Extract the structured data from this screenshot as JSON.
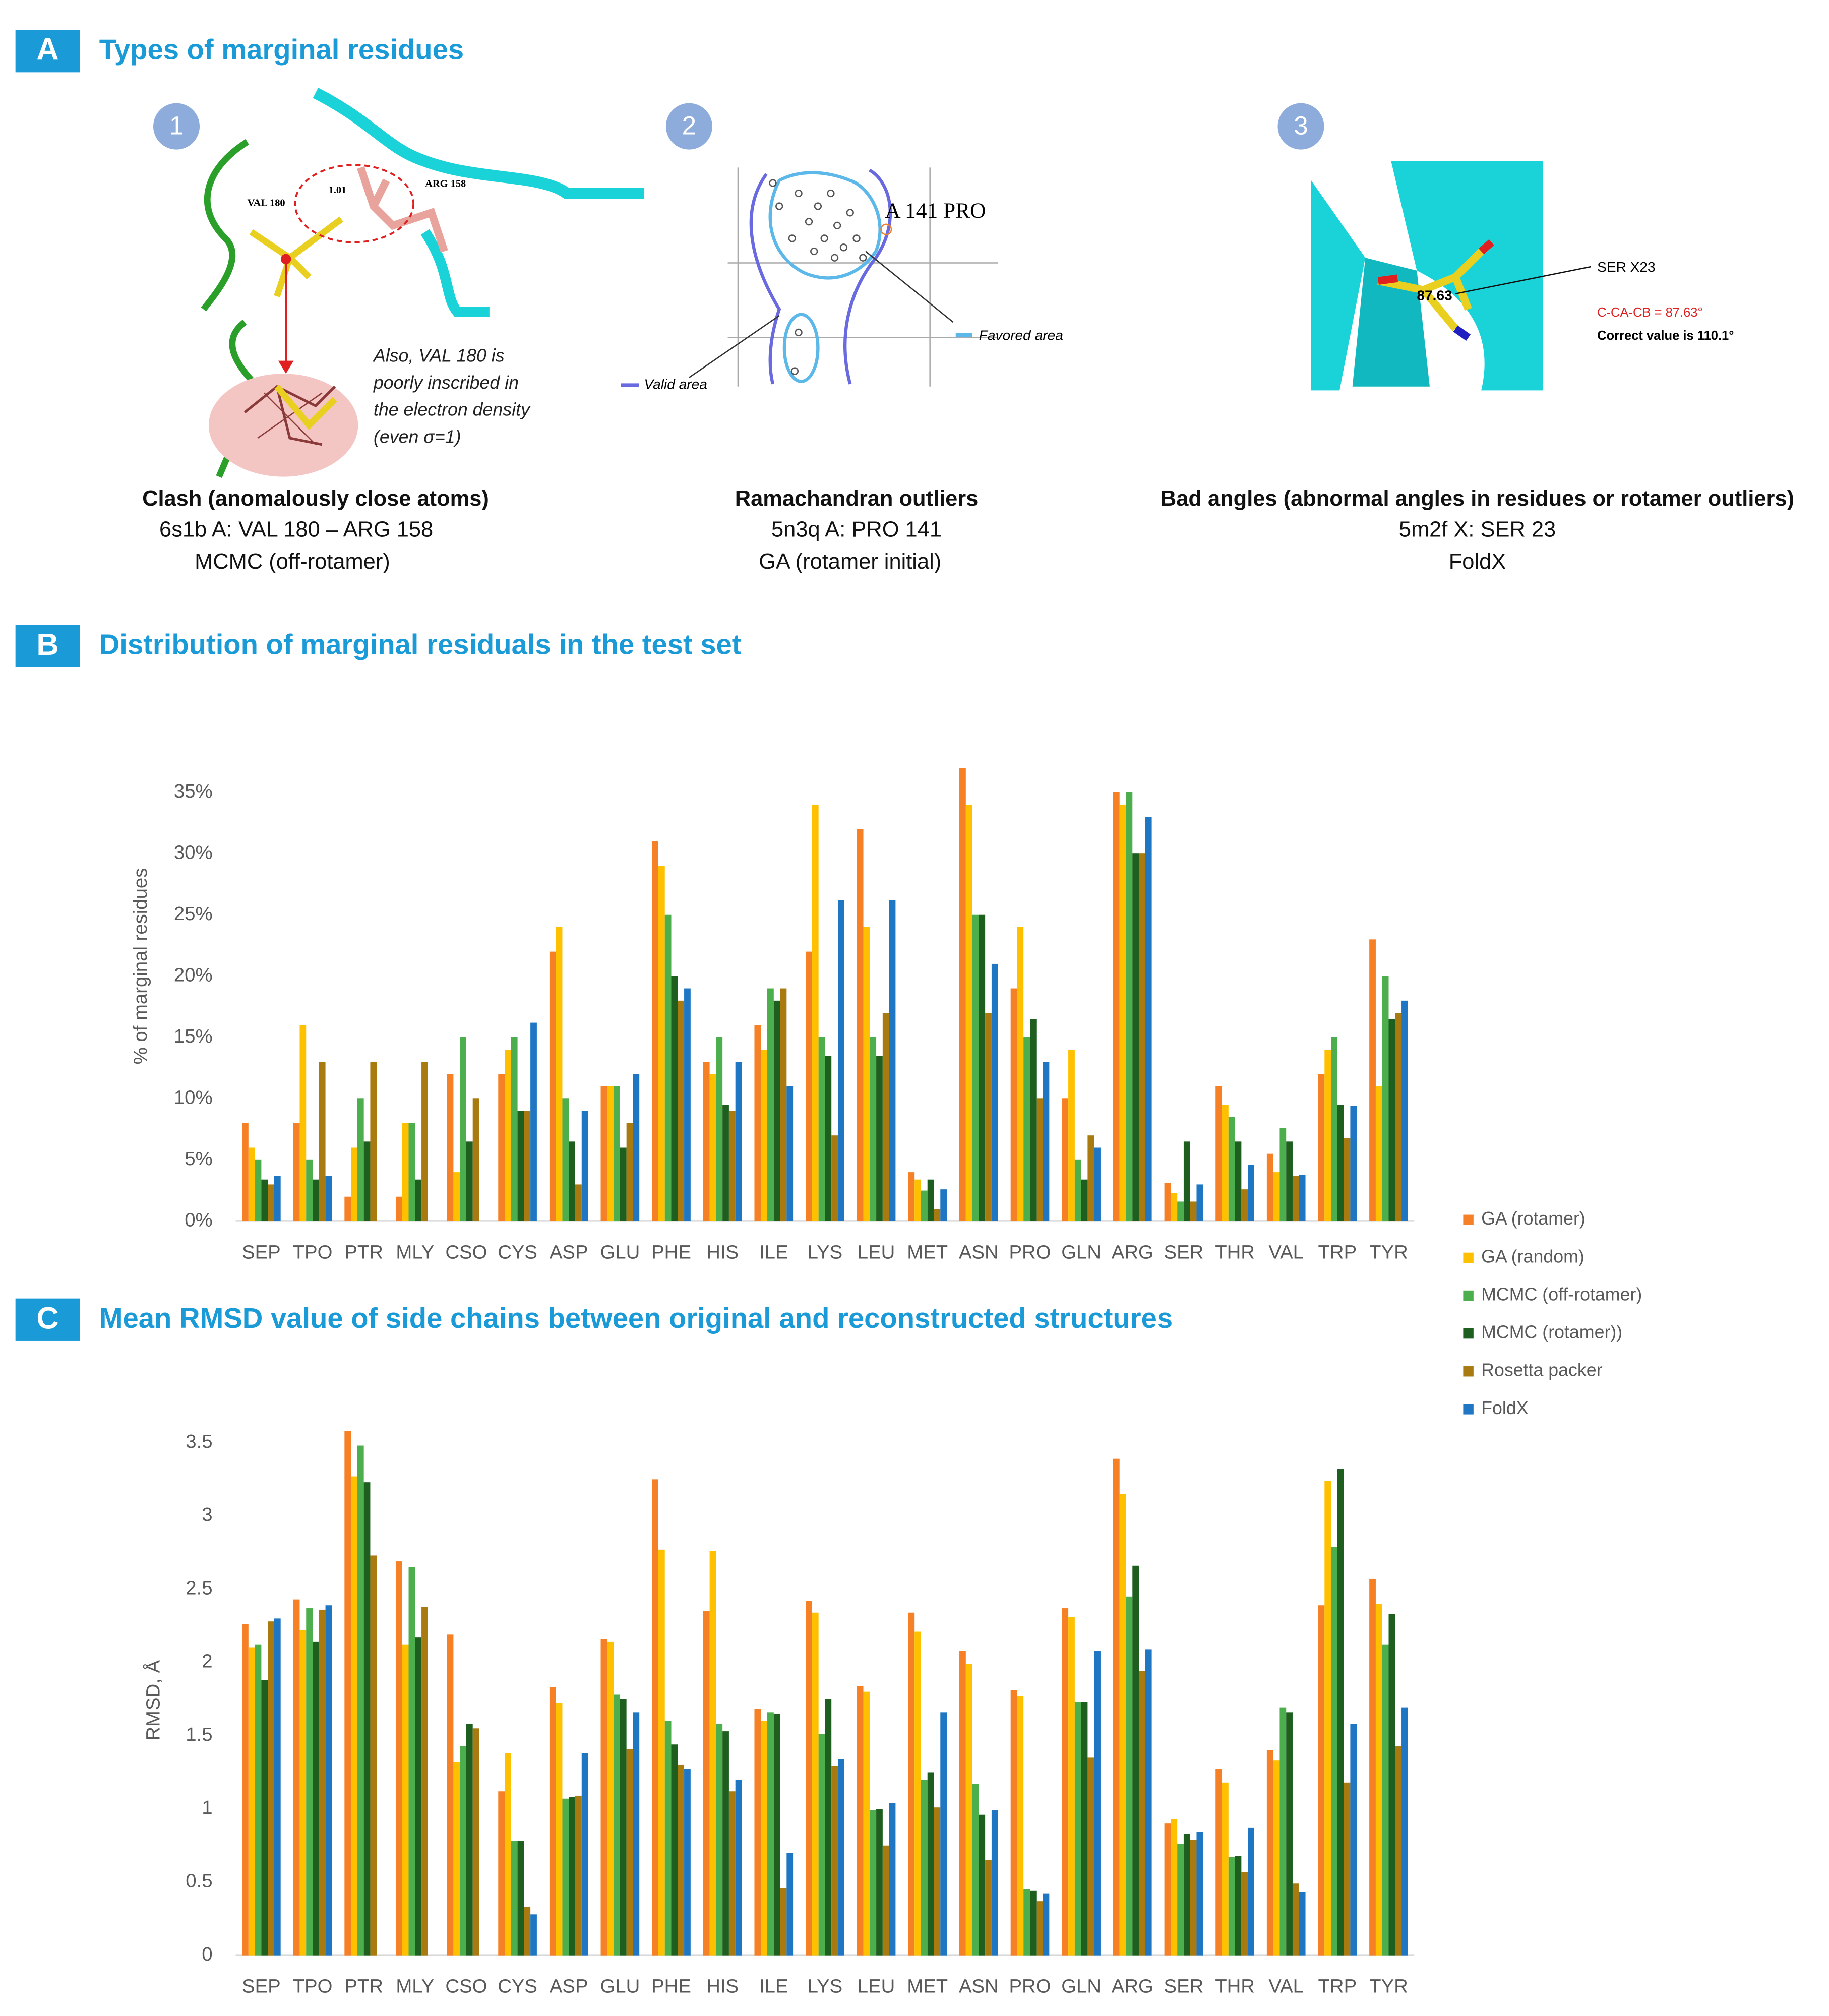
{
  "panel_a": {
    "letter": "A",
    "title": "Types of marginal residues",
    "items": [
      {
        "number": "1",
        "labels": [
          "VAL 180",
          "1.01",
          "ARG 158"
        ],
        "note": [
          "Also, VAL 180 is",
          "poorly inscribed in",
          "the electron density",
          "(even σ=1)"
        ],
        "caption": [
          "Clash (anomalously close atoms)",
          "6s1b A: VAL 180 – ARG 158",
          "MCMC (off-rotamer)"
        ]
      },
      {
        "number": "2",
        "labels": [
          "A 141 PRO",
          "Favored area",
          "Valid area"
        ],
        "caption": [
          "Ramachandran outliers",
          "5n3q A: PRO 141",
          "GA (rotamer initial)"
        ]
      },
      {
        "number": "3",
        "labels": [
          "SER X23",
          "87.63",
          "C-CA-CB = 87.63°",
          "Correct value is 110.1°"
        ],
        "caption": [
          "Bad angles (abnormal angles in residues or rotamer outliers)",
          "5m2f X: SER 23",
          "FoldX"
        ]
      }
    ]
  },
  "chart_data": [
    {
      "type": "bar",
      "panel": "B",
      "title": "Distribution of marginal residuals in the test set",
      "y_label": "% of marginal residues",
      "categories": [
        "SEP",
        "TPO",
        "PTR",
        "MLY",
        "CSO",
        "CYS",
        "ASP",
        "GLU",
        "PHE",
        "HIS",
        "ILE",
        "LYS",
        "LEU",
        "MET",
        "ASN",
        "PRO",
        "GLN",
        "ARG",
        "SER",
        "THR",
        "VAL",
        "TRP",
        "TYR"
      ],
      "ylim": [
        0,
        38
      ],
      "yticks": [
        {
          "value": 0,
          "label": "0%"
        },
        {
          "value": 5,
          "label": "5%"
        },
        {
          "value": 10,
          "label": "10%"
        },
        {
          "value": 15,
          "label": "15%"
        },
        {
          "value": 20,
          "label": "20%"
        },
        {
          "value": 25,
          "label": "25%"
        },
        {
          "value": 30,
          "label": "30%"
        },
        {
          "value": 35,
          "label": "35%"
        }
      ],
      "legend": "right",
      "series": [
        {
          "name": "GA (rotamer)",
          "color": "#f58025",
          "values": [
            8,
            8,
            2,
            2,
            12,
            12,
            22,
            11,
            31,
            13,
            16,
            22,
            32,
            4,
            37,
            19,
            10,
            35,
            3.1,
            11,
            5.5,
            12,
            23
          ]
        },
        {
          "name": "GA (random)",
          "color": "#ffc000",
          "values": [
            6,
            16,
            6,
            8,
            4,
            14,
            24,
            11,
            29,
            12,
            14,
            34,
            24,
            3.4,
            34,
            24,
            14,
            34,
            2.3,
            9.5,
            4,
            14,
            11
          ]
        },
        {
          "name": "MCMC (off-rotamer)",
          "color": "#4cae4c",
          "values": [
            5,
            5,
            10,
            8,
            15,
            15,
            10,
            11,
            25,
            15,
            19,
            15,
            15,
            2.5,
            25,
            15,
            5,
            35,
            1.6,
            8.5,
            7.6,
            15,
            20
          ]
        },
        {
          "name": "MCMC (rotamer))",
          "color": "#1e5f20",
          "values": [
            3.4,
            3.4,
            6.5,
            3.4,
            6.5,
            9,
            6.5,
            6,
            20,
            9.5,
            18,
            13.5,
            13.5,
            3.4,
            25,
            16.5,
            3.4,
            30,
            6.5,
            6.5,
            6.5,
            9.5,
            16.5
          ]
        },
        {
          "name": "Rosetta packer",
          "color": "#a97a10",
          "values": [
            3,
            13,
            13,
            13,
            10,
            9,
            3,
            8,
            18,
            9,
            19,
            7,
            17,
            1,
            17,
            10,
            7,
            30,
            1.6,
            2.6,
            3.7,
            6.8,
            17
          ]
        },
        {
          "name": "FoldX",
          "color": "#1f77c4",
          "values": [
            3.7,
            3.7,
            null,
            null,
            null,
            16.2,
            9,
            12,
            19,
            13,
            11,
            26.2,
            26.2,
            2.6,
            21,
            13,
            6,
            33,
            3,
            4.6,
            3.8,
            9.4,
            18
          ]
        }
      ]
    },
    {
      "type": "bar",
      "panel": "C",
      "title": "Mean RMSD value of side chains between original and reconstructed structures",
      "y_label": "RMSD, Å",
      "categories": [
        "SEP",
        "TPO",
        "PTR",
        "MLY",
        "CSO",
        "CYS",
        "ASP",
        "GLU",
        "PHE",
        "HIS",
        "ILE",
        "LYS",
        "LEU",
        "MET",
        "ASN",
        "PRO",
        "GLN",
        "ARG",
        "SER",
        "THR",
        "VAL",
        "TRP",
        "TYR"
      ],
      "ylim": [
        0,
        3.6
      ],
      "yticks": [
        0,
        0.5,
        1,
        1.5,
        2,
        2.5,
        3,
        3.5
      ],
      "series": [
        {
          "name": "GA (rotamer)",
          "color": "#f58025",
          "values": [
            2.26,
            2.43,
            3.58,
            2.69,
            2.19,
            1.12,
            1.83,
            2.16,
            3.25,
            2.35,
            1.68,
            2.42,
            1.84,
            2.34,
            2.08,
            1.81,
            2.37,
            3.39,
            0.9,
            1.27,
            1.4,
            2.39,
            2.57
          ]
        },
        {
          "name": "GA (random)",
          "color": "#ffc000",
          "values": [
            2.1,
            2.22,
            3.27,
            2.12,
            1.32,
            1.38,
            1.72,
            2.14,
            2.77,
            2.76,
            1.6,
            2.34,
            1.8,
            2.21,
            1.99,
            1.77,
            2.31,
            3.15,
            0.93,
            1.18,
            1.33,
            3.24,
            2.4
          ]
        },
        {
          "name": "MCMC (off-rotamer)",
          "color": "#4cae4c",
          "values": [
            2.12,
            2.37,
            3.48,
            2.65,
            1.43,
            0.78,
            1.07,
            1.78,
            1.6,
            1.58,
            1.66,
            1.51,
            0.99,
            1.2,
            1.17,
            0.45,
            1.73,
            2.45,
            0.76,
            0.67,
            1.69,
            2.79,
            2.12
          ]
        },
        {
          "name": "MCMC (rotamer))",
          "color": "#1e5f20",
          "values": [
            1.88,
            2.14,
            3.23,
            2.17,
            1.58,
            0.78,
            1.08,
            1.75,
            1.44,
            1.53,
            1.65,
            1.75,
            1.0,
            1.25,
            0.96,
            0.44,
            1.73,
            2.66,
            0.83,
            0.68,
            1.66,
            3.32,
            2.33
          ]
        },
        {
          "name": "Rosetta packer",
          "color": "#a97a10",
          "values": [
            2.28,
            2.36,
            2.73,
            2.38,
            1.55,
            0.33,
            1.09,
            1.41,
            1.3,
            1.12,
            0.46,
            1.29,
            0.75,
            1.01,
            0.65,
            0.37,
            1.35,
            1.94,
            0.79,
            0.57,
            0.49,
            1.18,
            1.43
          ]
        },
        {
          "name": "FoldX",
          "color": "#1f77c4",
          "values": [
            2.3,
            2.39,
            null,
            null,
            null,
            0.28,
            1.38,
            1.66,
            1.27,
            1.2,
            0.7,
            1.34,
            1.04,
            1.66,
            0.99,
            0.42,
            2.08,
            2.09,
            0.84,
            0.87,
            0.43,
            1.58,
            1.69
          ]
        }
      ]
    }
  ]
}
